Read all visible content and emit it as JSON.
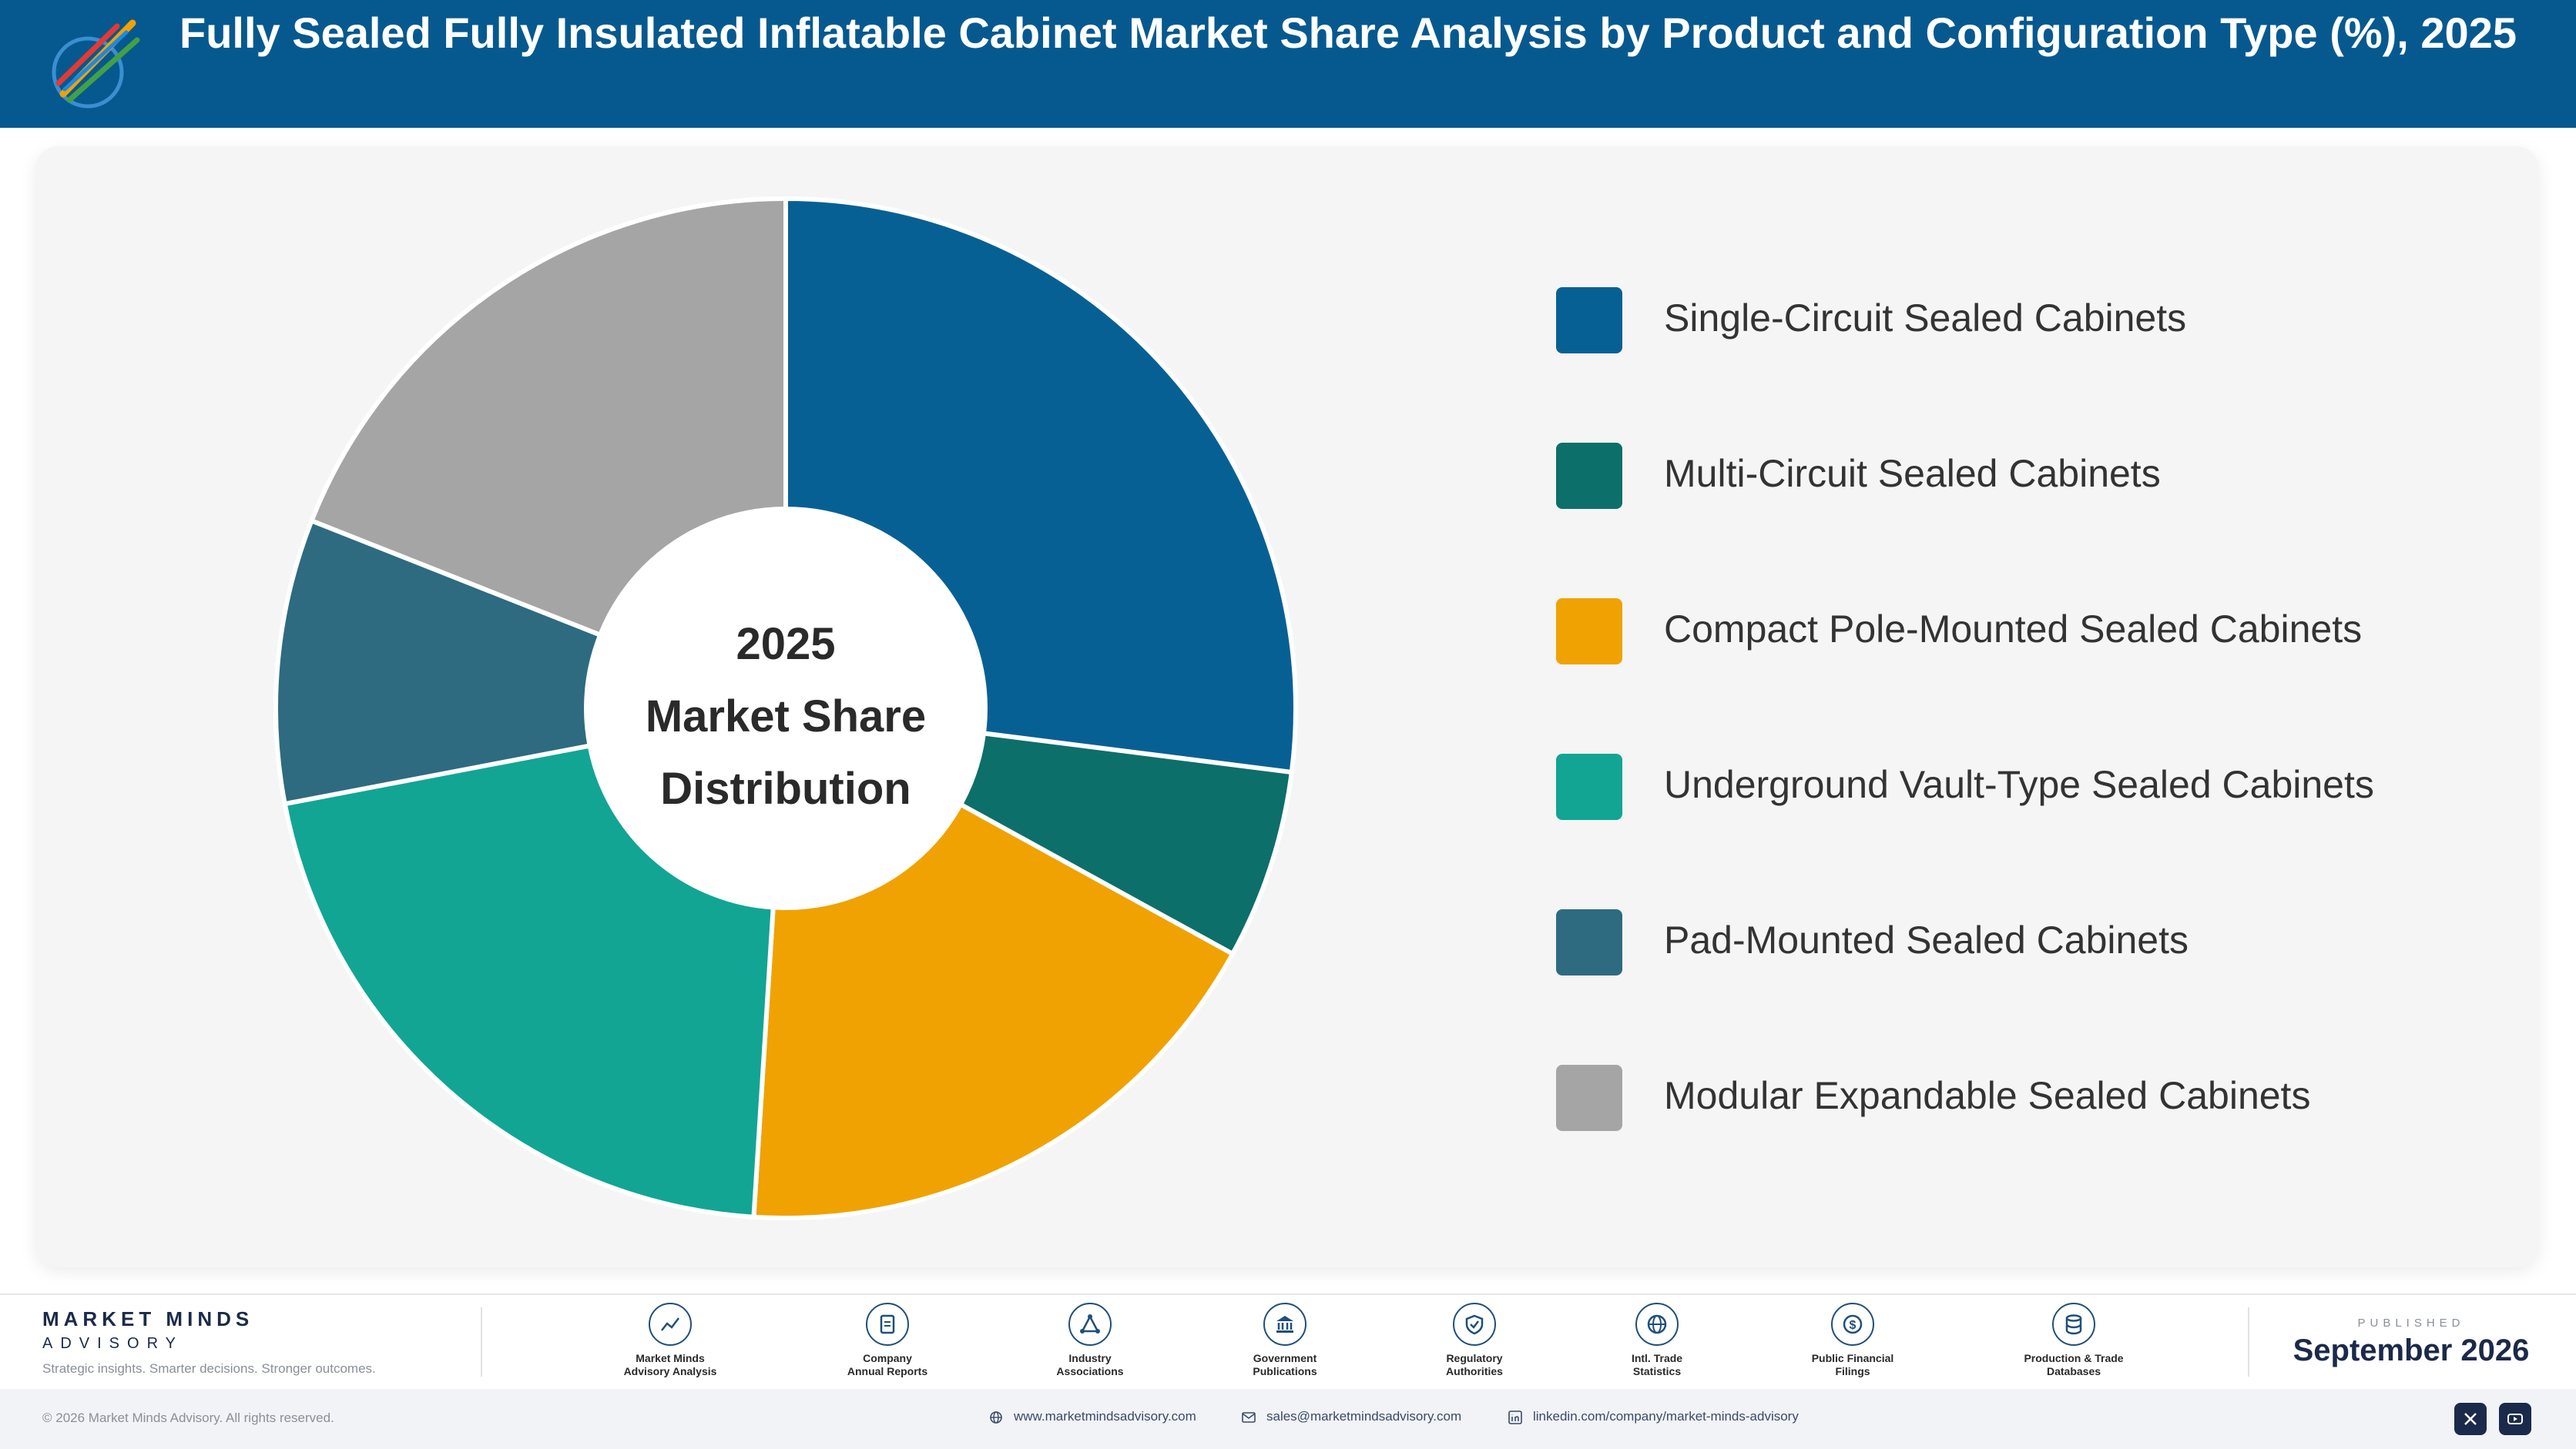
{
  "header": {
    "title": "Fully Sealed Fully Insulated Inflatable Cabinet Market Share Analysis by Product and Configuration Type (%), 2025",
    "logo_icon": "market-minds-logo"
  },
  "chart_data": {
    "type": "pie",
    "title": "Fully Sealed Fully Insulated Inflatable Cabinet Market Share Analysis by Product and Configuration Type (%), 2025",
    "center_label": [
      "2025",
      "Market Share",
      "Distribution"
    ],
    "donut": true,
    "legend_position": "right",
    "categories": [
      "Single-Circuit Sealed Cabinets",
      "Multi-Circuit Sealed Cabinets",
      "Compact Pole-Mounted Sealed Cabinets",
      "Underground Vault-Type Sealed Cabinets",
      "Pad-Mounted Sealed Cabinets",
      "Modular Expandable Sealed Cabinets"
    ],
    "values": [
      27,
      6,
      18,
      21,
      9,
      19
    ],
    "colors": [
      "#076094",
      "#0d6f6a",
      "#f0a202",
      "#12a594",
      "#2e6b80",
      "#a5a5a5"
    ]
  },
  "footer": {
    "brand_name": "MARKET MINDS",
    "brand_sub": "ADVISORY",
    "tagline": "Strategic insights. Smarter decisions. Stronger outcomes.",
    "sources": [
      {
        "icon": "trend-chart-icon",
        "line1": "Market Minds",
        "line2": "Advisory Analysis"
      },
      {
        "icon": "document-icon",
        "line1": "Company",
        "line2": "Annual Reports"
      },
      {
        "icon": "network-icon",
        "line1": "Industry",
        "line2": "Associations"
      },
      {
        "icon": "government-building-icon",
        "line1": "Government",
        "line2": "Publications"
      },
      {
        "icon": "shield-check-icon",
        "line1": "Regulatory",
        "line2": "Authorities"
      },
      {
        "icon": "globe-icon",
        "line1": "Intl. Trade",
        "line2": "Statistics"
      },
      {
        "icon": "dollar-coin-icon",
        "line1": "Public Financial",
        "line2": "Filings"
      },
      {
        "icon": "database-icon",
        "line1": "Production & Trade",
        "line2": "Databases"
      }
    ],
    "published_label": "PUBLISHED",
    "published_date": "September 2026"
  },
  "bottom_bar": {
    "copyright": "© 2026 Market Minds Advisory. All rights reserved.",
    "website": "www.marketmindsadvisory.com",
    "email": "sales@marketmindsadvisory.com",
    "linkedin": "linkedin.com/company/market-minds-advisory",
    "social": [
      "x-icon",
      "youtube-icon"
    ]
  }
}
